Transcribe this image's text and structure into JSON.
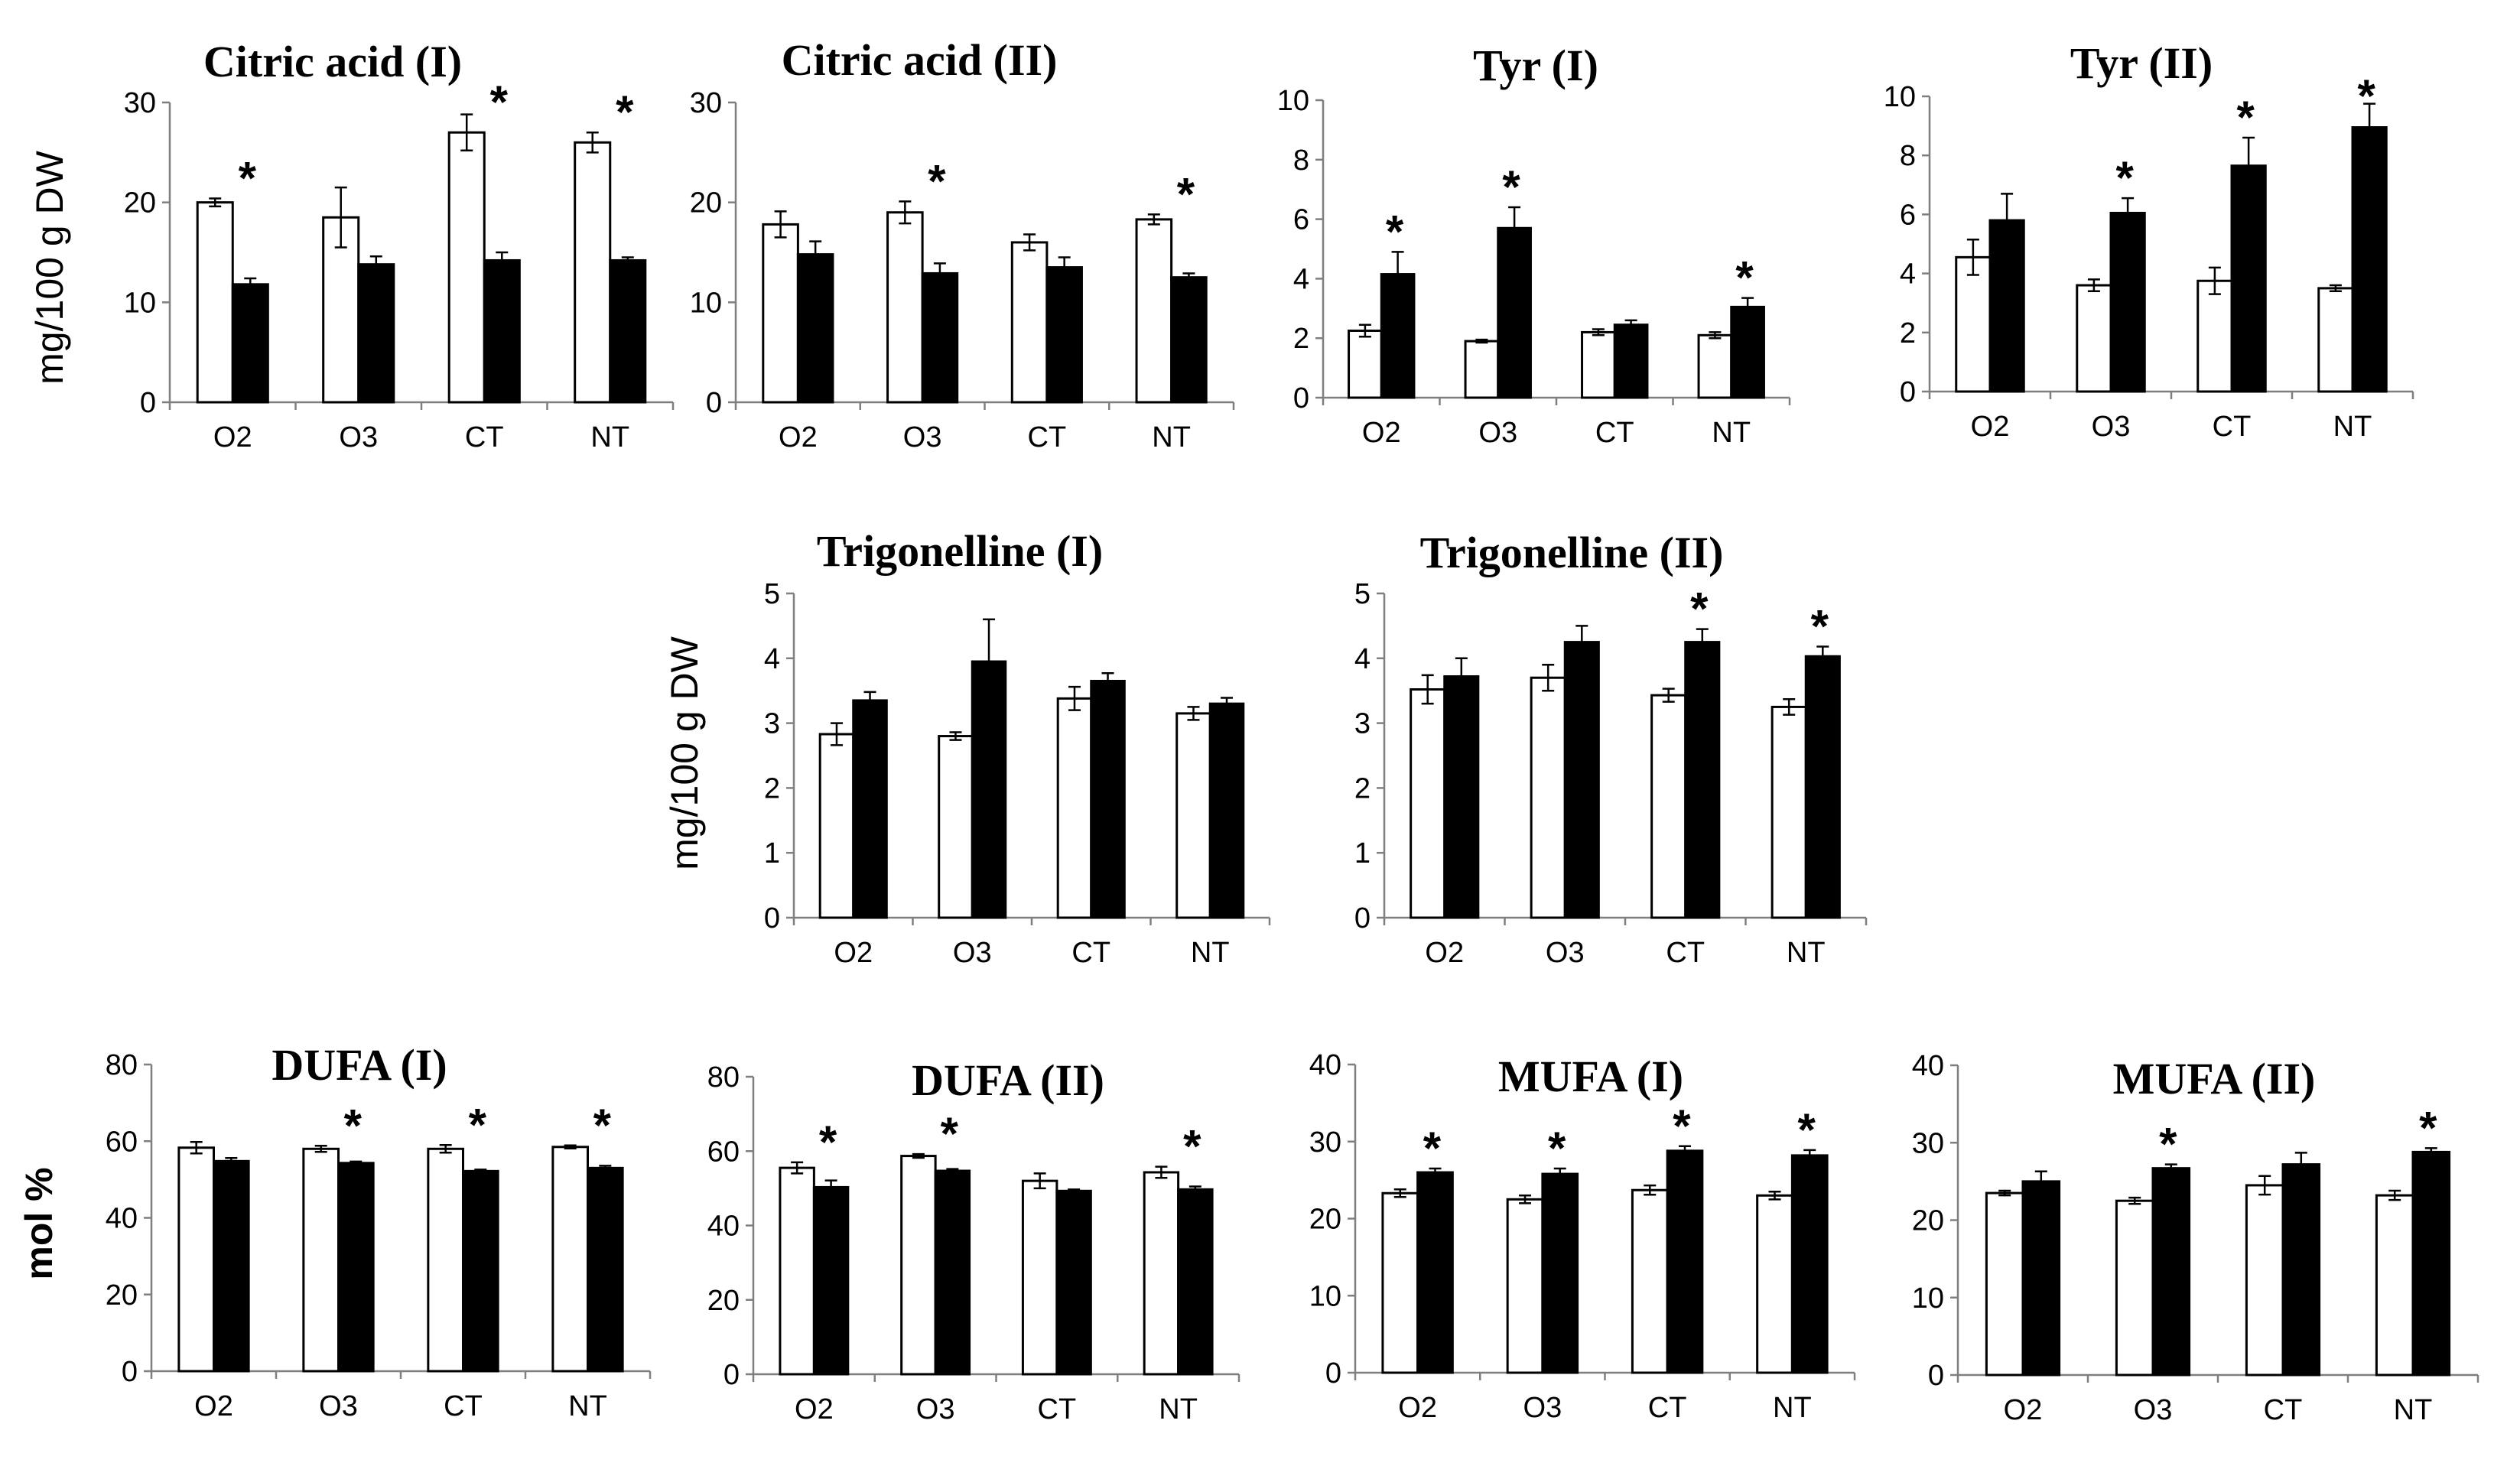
{
  "ylabels": [
    {
      "text": "mg/100 g DW",
      "bold": false
    },
    {
      "text": "mg/100 g DW",
      "bold": false
    },
    {
      "text": "mol %",
      "bold": true
    }
  ],
  "chart_data": [
    {
      "type": "bar",
      "title": "Citric acid (I)",
      "categories": [
        "O2",
        "O3",
        "CT",
        "NT"
      ],
      "ylim": [
        0,
        30
      ],
      "yticks": [
        0,
        10,
        20,
        30
      ],
      "series": [
        {
          "name": "white",
          "values": [
            20,
            18.5,
            27,
            26
          ],
          "errors": [
            0.4,
            3,
            1.8,
            1
          ]
        },
        {
          "name": "black",
          "values": [
            11.8,
            13.8,
            14.2,
            14.2
          ],
          "errors": [
            0.6,
            0.8,
            0.8,
            0.3
          ]
        }
      ],
      "significant": [
        true,
        false,
        true,
        true
      ]
    },
    {
      "type": "bar",
      "title": "Citric acid (II)",
      "categories": [
        "O2",
        "O3",
        "CT",
        "NT"
      ],
      "ylim": [
        0,
        30
      ],
      "yticks": [
        0,
        10,
        20,
        30
      ],
      "series": [
        {
          "name": "white",
          "values": [
            17.8,
            19,
            16,
            18.3
          ],
          "errors": [
            1.3,
            1.1,
            0.8,
            0.5
          ]
        },
        {
          "name": "black",
          "values": [
            14.8,
            12.9,
            13.5,
            12.5
          ],
          "errors": [
            1.3,
            1,
            1,
            0.4
          ]
        }
      ],
      "significant": [
        false,
        true,
        false,
        true
      ]
    },
    {
      "type": "bar",
      "title": "Tyr (I)",
      "categories": [
        "O2",
        "O3",
        "CT",
        "NT"
      ],
      "ylim": [
        0,
        10
      ],
      "yticks": [
        0,
        2,
        4,
        6,
        8,
        10
      ],
      "series": [
        {
          "name": "white",
          "values": [
            2.25,
            1.9,
            2.2,
            2.1
          ],
          "errors": [
            0.2,
            0.05,
            0.1,
            0.1
          ]
        },
        {
          "name": "black",
          "values": [
            4.15,
            5.7,
            2.45,
            3.05
          ],
          "errors": [
            0.75,
            0.7,
            0.15,
            0.3
          ]
        }
      ],
      "significant": [
        true,
        true,
        false,
        true
      ]
    },
    {
      "type": "bar",
      "title": "Tyr (II)",
      "categories": [
        "O2",
        "O3",
        "CT",
        "NT"
      ],
      "ylim": [
        0,
        10
      ],
      "yticks": [
        0,
        2,
        4,
        6,
        8,
        10
      ],
      "series": [
        {
          "name": "white",
          "values": [
            4.55,
            3.6,
            3.75,
            3.5
          ],
          "errors": [
            0.6,
            0.2,
            0.45,
            0.1
          ]
        },
        {
          "name": "black",
          "values": [
            5.8,
            6.05,
            7.65,
            8.95
          ],
          "errors": [
            0.9,
            0.5,
            0.95,
            0.8
          ]
        }
      ],
      "significant": [
        false,
        true,
        true,
        true
      ]
    },
    {
      "type": "bar",
      "title": "Trigonelline (I)",
      "categories": [
        "O2",
        "O3",
        "CT",
        "NT"
      ],
      "ylim": [
        0,
        5
      ],
      "yticks": [
        0,
        1,
        2,
        3,
        4,
        5
      ],
      "series": [
        {
          "name": "white",
          "values": [
            2.83,
            2.8,
            3.38,
            3.15
          ],
          "errors": [
            0.17,
            0.06,
            0.18,
            0.1
          ]
        },
        {
          "name": "black",
          "values": [
            3.35,
            3.95,
            3.65,
            3.3
          ],
          "errors": [
            0.13,
            0.65,
            0.12,
            0.09
          ]
        }
      ],
      "significant": [
        false,
        false,
        false,
        false
      ]
    },
    {
      "type": "bar",
      "title": "Trigonelline (II)",
      "categories": [
        "O2",
        "O3",
        "CT",
        "NT"
      ],
      "ylim": [
        0,
        5
      ],
      "yticks": [
        0,
        1,
        2,
        3,
        4,
        5
      ],
      "series": [
        {
          "name": "white",
          "values": [
            3.52,
            3.7,
            3.43,
            3.25
          ],
          "errors": [
            0.22,
            0.2,
            0.1,
            0.12
          ]
        },
        {
          "name": "black",
          "values": [
            3.72,
            4.25,
            4.25,
            4.03
          ],
          "errors": [
            0.28,
            0.25,
            0.2,
            0.15
          ]
        }
      ],
      "significant": [
        false,
        false,
        true,
        true
      ]
    },
    {
      "type": "bar",
      "title": "DUFA (I)",
      "categories": [
        "O2",
        "O3",
        "CT",
        "NT"
      ],
      "ylim": [
        0,
        80
      ],
      "yticks": [
        0,
        20,
        40,
        60,
        80
      ],
      "series": [
        {
          "name": "white",
          "values": [
            58.3,
            58,
            58,
            58.5
          ],
          "errors": [
            1.5,
            0.8,
            1,
            0.4
          ]
        },
        {
          "name": "black",
          "values": [
            54.8,
            54.3,
            52.2,
            53
          ],
          "errors": [
            0.8,
            0.4,
            0.4,
            0.6
          ]
        }
      ],
      "significant": [
        false,
        true,
        true,
        true
      ]
    },
    {
      "type": "bar",
      "title": "DUFA (II)",
      "categories": [
        "O2",
        "O3",
        "CT",
        "NT"
      ],
      "ylim": [
        0,
        80
      ],
      "yticks": [
        0,
        20,
        40,
        60,
        80
      ],
      "series": [
        {
          "name": "white",
          "values": [
            55.5,
            58.7,
            52,
            54.3
          ],
          "errors": [
            1.5,
            0.5,
            2,
            1.5
          ]
        },
        {
          "name": "black",
          "values": [
            50.3,
            54.7,
            49.3,
            49.7
          ],
          "errors": [
            1.8,
            0.5,
            0.4,
            0.8
          ]
        }
      ],
      "significant": [
        true,
        true,
        false,
        true
      ]
    },
    {
      "type": "bar",
      "title": "MUFA (I)",
      "categories": [
        "O2",
        "O3",
        "CT",
        "NT"
      ],
      "ylim": [
        0,
        40
      ],
      "yticks": [
        0,
        10,
        20,
        30,
        40
      ],
      "series": [
        {
          "name": "white",
          "values": [
            23.3,
            22.5,
            23.7,
            23
          ],
          "errors": [
            0.5,
            0.5,
            0.6,
            0.5
          ]
        },
        {
          "name": "black",
          "values": [
            26,
            25.8,
            28.8,
            28.2
          ],
          "errors": [
            0.5,
            0.7,
            0.6,
            0.7
          ]
        }
      ],
      "significant": [
        true,
        true,
        true,
        true
      ]
    },
    {
      "type": "bar",
      "title": "MUFA (II)",
      "categories": [
        "O2",
        "O3",
        "CT",
        "NT"
      ],
      "ylim": [
        0,
        40
      ],
      "yticks": [
        0,
        10,
        20,
        30,
        40
      ],
      "series": [
        {
          "name": "white",
          "values": [
            23.5,
            22.5,
            24.5,
            23.2
          ],
          "errors": [
            0.3,
            0.4,
            1.2,
            0.6
          ]
        },
        {
          "name": "black",
          "values": [
            25,
            26.7,
            27.2,
            28.8
          ],
          "errors": [
            1.3,
            0.5,
            1.5,
            0.5
          ]
        }
      ],
      "significant": [
        false,
        true,
        false,
        true
      ]
    }
  ]
}
